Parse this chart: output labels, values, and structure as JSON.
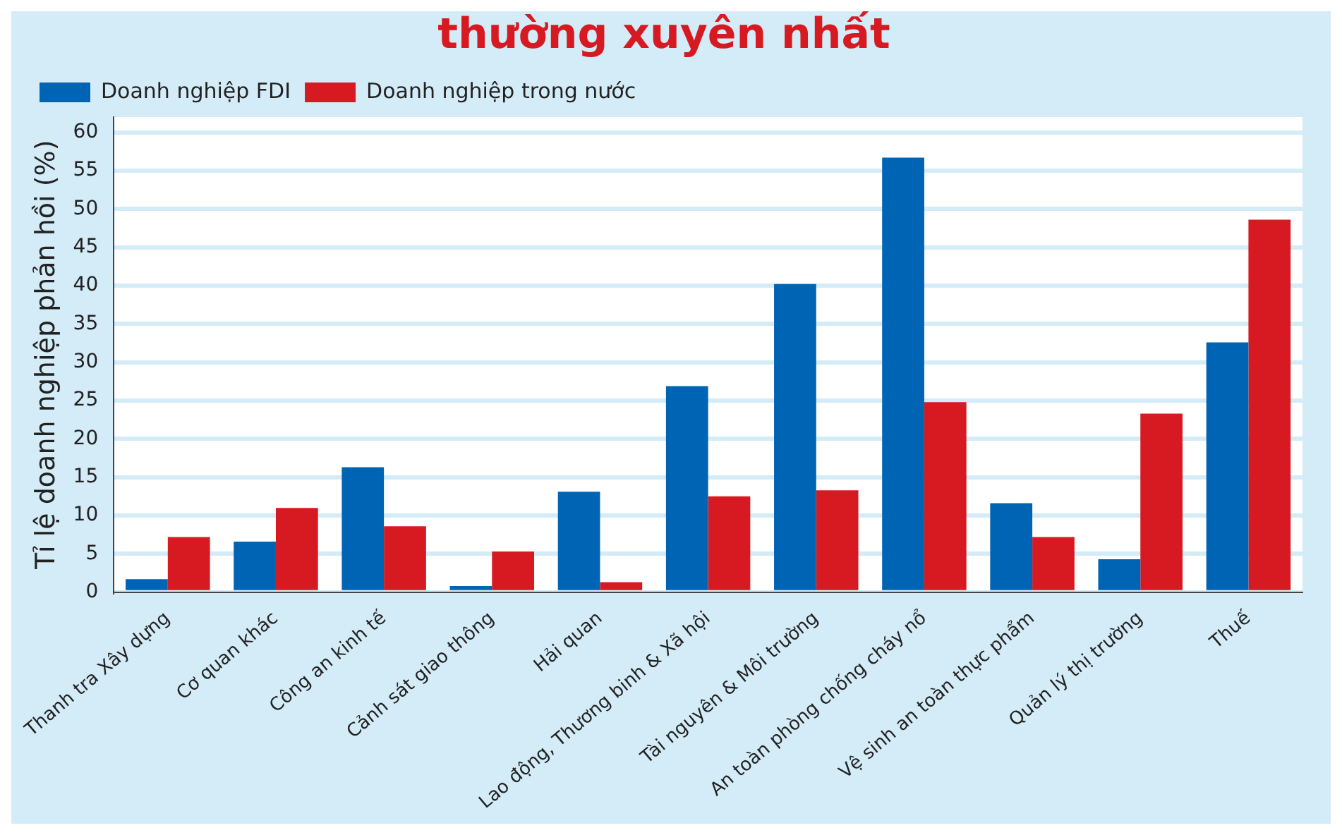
{
  "chart_data": {
    "type": "bar",
    "title": "thường xuyên nhất",
    "ylabel": "Tỉ lệ doanh nghiệp phản hồi (%)",
    "categories": [
      "Thanh tra Xây dựng",
      "Cơ quan khác",
      "Công an kinh tế",
      "Cảnh sát giao thông",
      "Hải quan",
      "Lao động, Thương binh & Xã hội",
      "Tài nguyên & Môi trường",
      "An toàn phòng chống cháy nổ",
      "Vệ sinh an toàn thực phẩm",
      "Quản lý thị trường",
      "Thuế"
    ],
    "series": [
      {
        "name": "Doanh nghiệp FDI",
        "color": "#0064b4",
        "values": [
          1.7,
          6.6,
          16.3,
          0.8,
          13.1,
          26.9,
          40.2,
          56.7,
          11.6,
          4.3,
          32.6
        ]
      },
      {
        "name": "Doanh nghiệp trong nước",
        "color": "#d71a21",
        "values": [
          7.2,
          11.0,
          8.6,
          5.3,
          1.3,
          12.5,
          13.3,
          24.8,
          7.2,
          23.3,
          48.6
        ]
      }
    ],
    "ylim": [
      0,
      62
    ],
    "yticks": [
      0,
      5,
      10,
      15,
      20,
      25,
      30,
      35,
      40,
      45,
      50,
      55,
      60
    ],
    "grid": "y",
    "legend": "top left"
  }
}
